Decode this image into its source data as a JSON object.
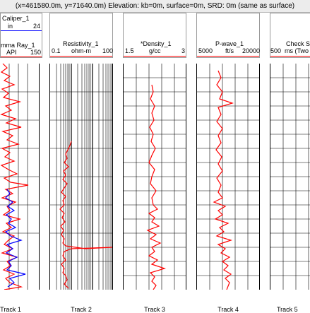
{
  "window": {
    "title": "(x=461580.0m, y=71640.0m) Elevation: kb=0m, surface=0m, SRD: 0m (same as surface)"
  },
  "colors": {
    "red_curve": "#ff0000",
    "blue_curve": "#0000ff",
    "grid": "#000000"
  },
  "tracks": [
    {
      "label": "Track 1",
      "curves": [
        {
          "name": "Caliper_1",
          "unit": "in",
          "min": "",
          "max": "24",
          "color": "#0000ff"
        },
        {
          "name": "mma Ray_1",
          "unit": "API",
          "min": "",
          "max": "150",
          "color": "#ff0000"
        }
      ]
    },
    {
      "label": "Track 2",
      "curves": [
        {
          "name": "Resistivity_1",
          "unit": "ohm-m",
          "min": "0.1",
          "max": "100",
          "color": "#ff0000"
        }
      ]
    },
    {
      "label": "Track 3",
      "curves": [
        {
          "name": "*Density_1",
          "unit": "g/cc",
          "min": "1.5",
          "max": "3",
          "color": "#ff0000"
        }
      ]
    },
    {
      "label": "Track 4",
      "curves": [
        {
          "name": "P-wave_1",
          "unit": "ft/s",
          "min": "5000",
          "max": "20000",
          "color": "#ff0000"
        }
      ]
    },
    {
      "label": "Track 5",
      "curves": [
        {
          "name": "Check Sh",
          "unit": "ms (Two",
          "min": "500",
          "max": "",
          "color": "#ff0000"
        }
      ]
    }
  ]
}
